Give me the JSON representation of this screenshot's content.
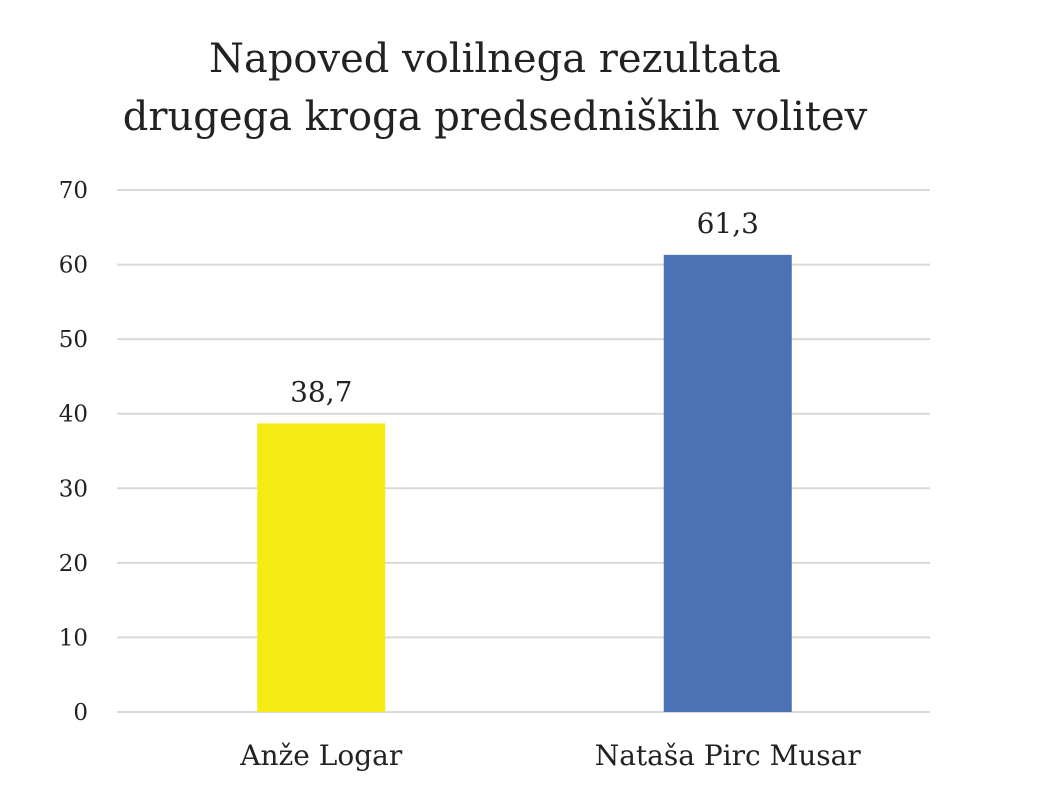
{
  "chart_data": {
    "type": "bar",
    "title": [
      "Napoved volilnega rezultata",
      "drugega kroga predsedniških volitev"
    ],
    "categories": [
      "Anže Logar",
      "Nataša Pirc Musar"
    ],
    "values": [
      38.7,
      61.3
    ],
    "data_labels": [
      "38,7",
      "61,3"
    ],
    "colors": [
      "#F5EA14",
      "#4A72B5"
    ],
    "ylim": [
      0,
      70
    ],
    "yticks": [
      0,
      10,
      20,
      30,
      40,
      50,
      60,
      70
    ],
    "grid": true,
    "xlabel": "",
    "ylabel": ""
  }
}
